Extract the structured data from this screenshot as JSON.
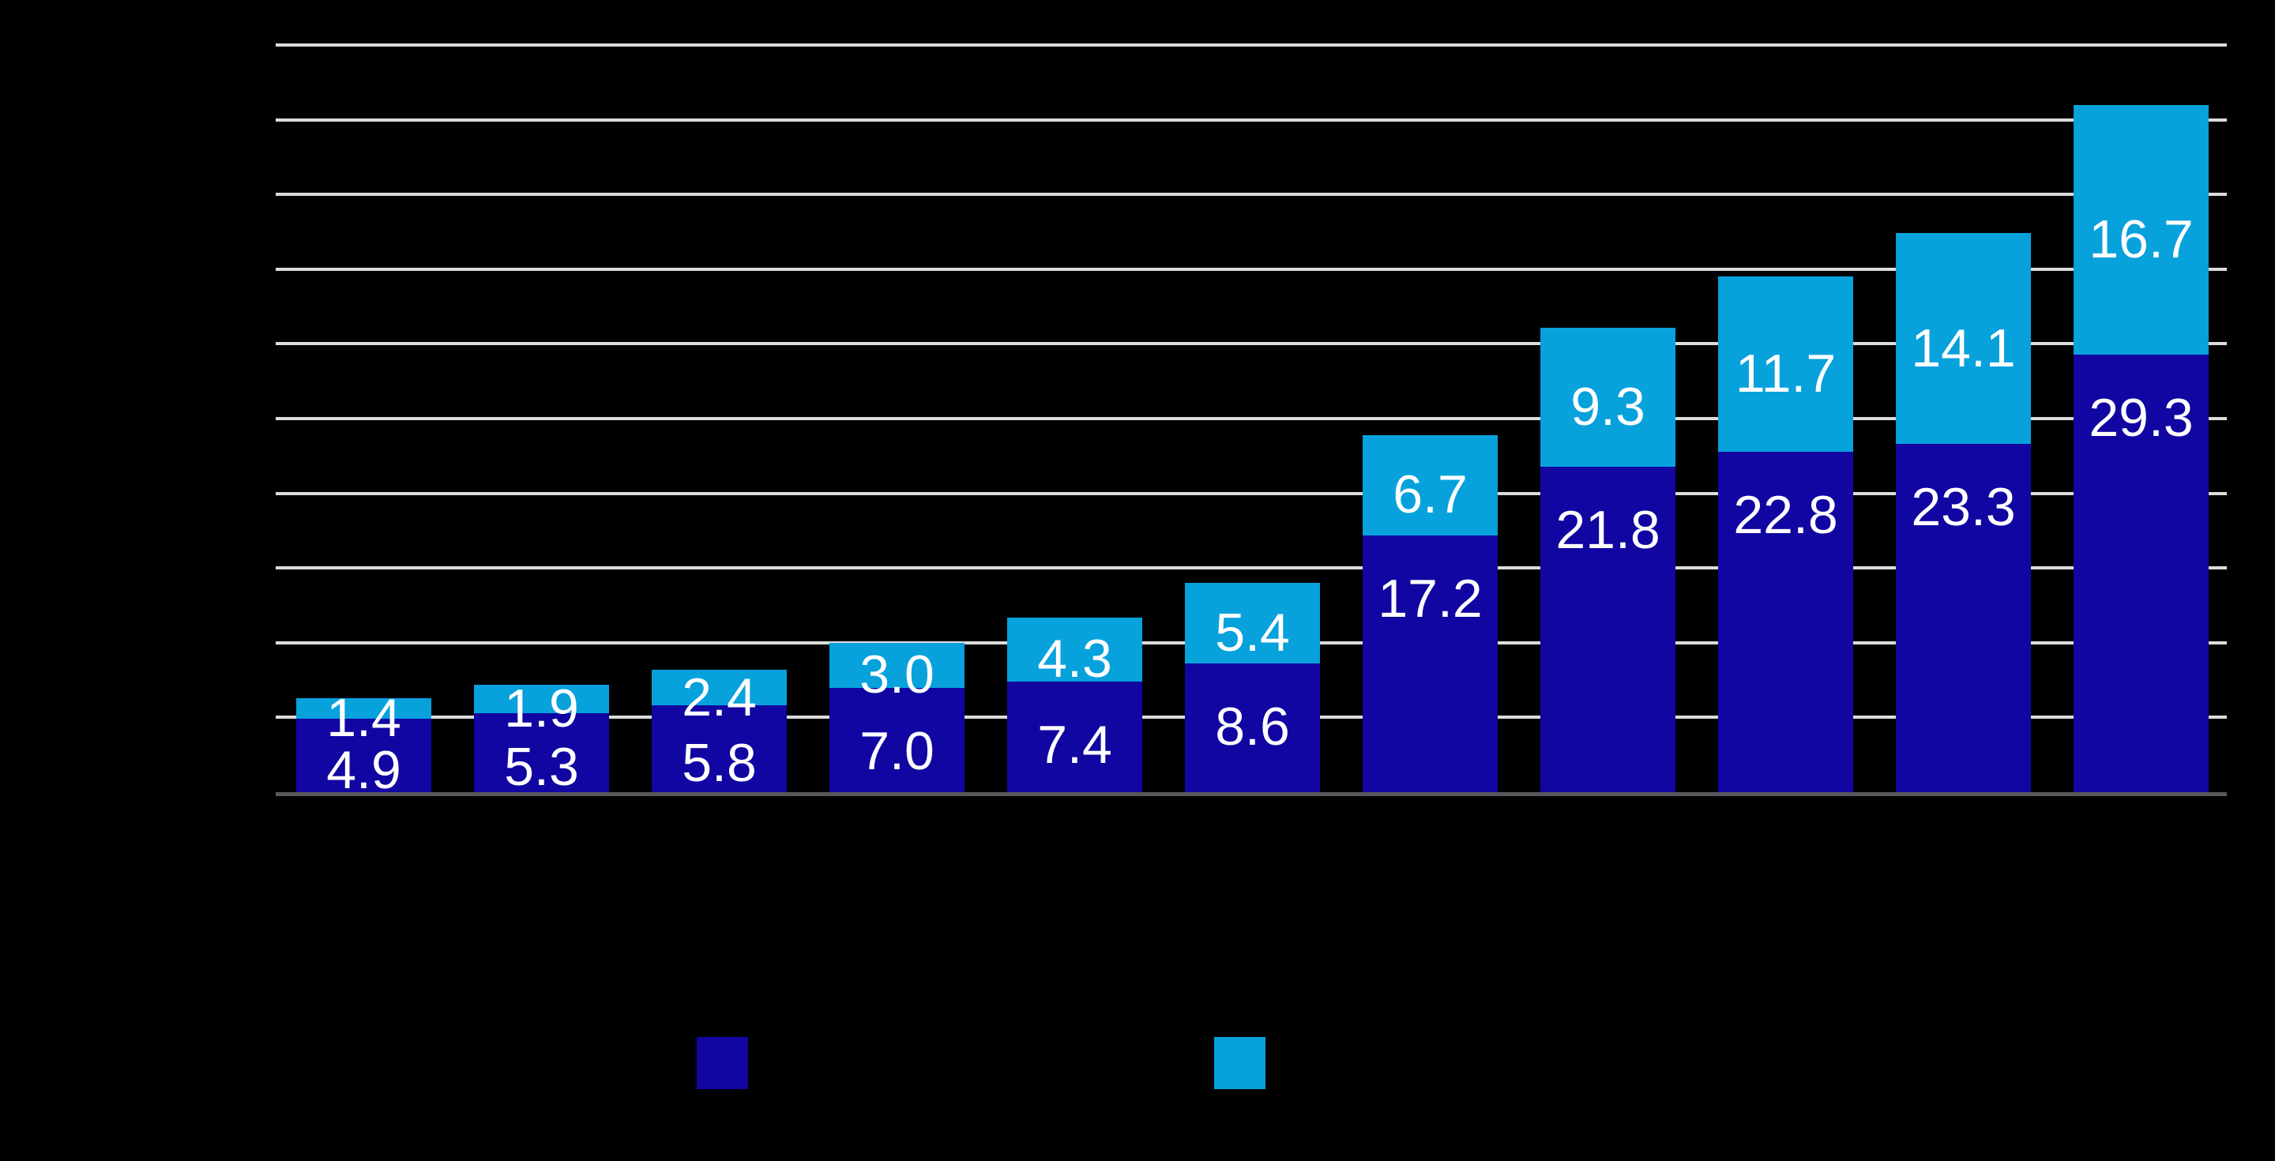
{
  "chart_data": {
    "type": "bar",
    "stacked": true,
    "title": "",
    "xlabel": "",
    "ylabel": "",
    "categories": [
      "",
      "",
      "",
      "",
      "",
      "",
      "",
      "",
      "",
      "",
      ""
    ],
    "series": [
      {
        "name": "dark-blue-series",
        "color": "#1106A1",
        "values": [
          4.9,
          5.3,
          5.8,
          7.0,
          7.4,
          8.6,
          17.2,
          21.8,
          22.8,
          23.3,
          29.3
        ]
      },
      {
        "name": "light-blue-series",
        "color": "#07A1DC",
        "values": [
          1.4,
          1.9,
          2.4,
          3.0,
          4.3,
          5.4,
          6.7,
          9.3,
          11.7,
          14.1,
          16.7
        ]
      }
    ],
    "value_labels_visible": true,
    "value_label_format": "one-decimal",
    "value_label_color": "#FFFFFF",
    "ylim": [
      0,
      50
    ],
    "gridline_interval": 5,
    "grid": true,
    "x_tick_labels_visible": false,
    "y_tick_labels_visible": false,
    "legend_position": "bottom",
    "legend_labels_visible": false
  },
  "colors": {
    "background": "#000000",
    "gridline": "#DCDCDC",
    "baseline": "#58585A",
    "dark_series": "#1106A1",
    "light_series": "#07A1DC",
    "label_text": "#FFFFFF"
  }
}
